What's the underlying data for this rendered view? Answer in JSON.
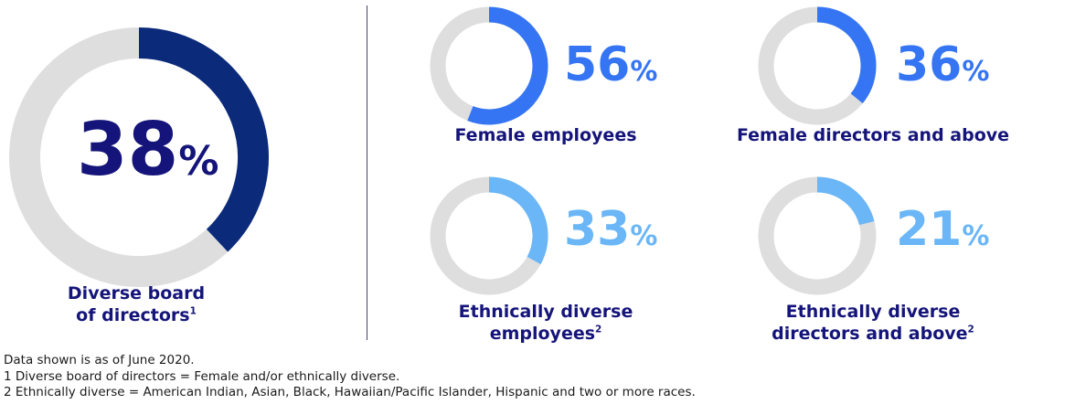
{
  "colors": {
    "track": "#dedede",
    "dark_navy": "#0b2a7a",
    "blue": "#3575f3",
    "light_blue": "#6ab6f6",
    "label_navy": "#14147a"
  },
  "chart_data": [
    {
      "type": "pie",
      "value": 38,
      "unit": "%",
      "label": "Diverse board",
      "label_line2": "of directors",
      "footnote_mark": "1",
      "color": "#0b2a7a"
    },
    {
      "type": "pie",
      "value": 56,
      "unit": "%",
      "label": "Female employees",
      "color": "#3575f3"
    },
    {
      "type": "pie",
      "value": 36,
      "unit": "%",
      "label": "Female directors and above",
      "color": "#3575f3"
    },
    {
      "type": "pie",
      "value": 33,
      "unit": "%",
      "label": "Ethnically diverse",
      "label_line2": "employees",
      "footnote_mark": "2",
      "color": "#6ab6f6"
    },
    {
      "type": "pie",
      "value": 21,
      "unit": "%",
      "label": "Ethnically diverse",
      "label_line2": "directors and above",
      "footnote_mark": "2",
      "color": "#6ab6f6"
    }
  ],
  "notes": {
    "as_of": "Data shown is as of June 2020.",
    "note1": "1  Diverse board of directors = Female and/or ethnically diverse.",
    "note2": "2  Ethnically diverse = American Indian, Asian, Black, Hawaiian/Pacific Islander, Hispanic and two or more races."
  }
}
